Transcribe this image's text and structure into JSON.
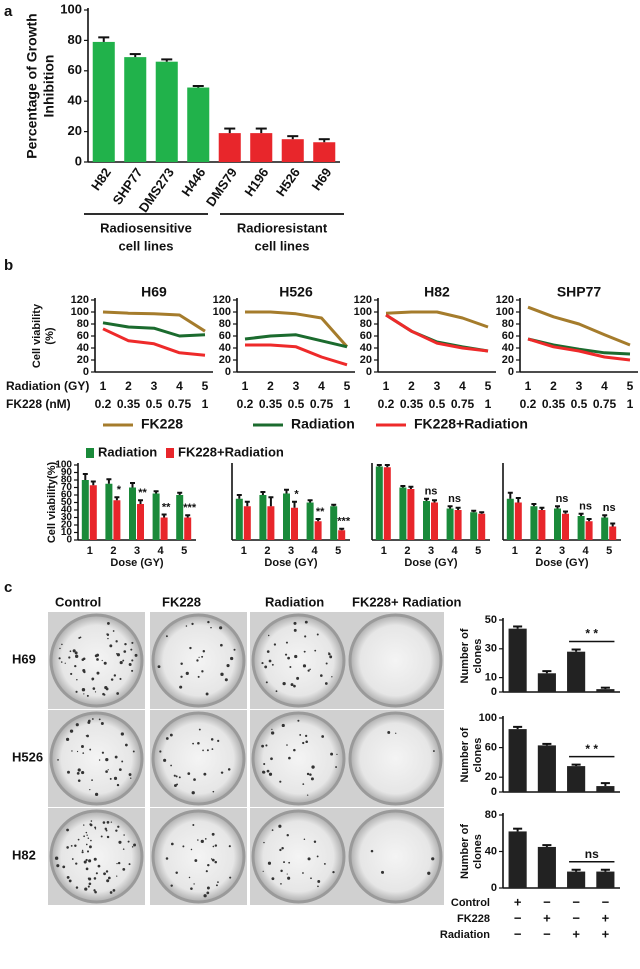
{
  "panels": [
    "a",
    "b",
    "c"
  ],
  "dose_rows": [
    "Radiation (GY)",
    "FK228 (nM)"
  ],
  "plates": {
    "columns": [
      "Control",
      "FK228",
      "Radiation",
      "FK228+ Radiation"
    ],
    "rows": [
      "H69",
      "H526",
      "H82"
    ]
  },
  "treatments": [
    {
      "name": "Control",
      "signs": [
        "+",
        "−",
        "−",
        "−"
      ]
    },
    {
      "name": "FK228",
      "signs": [
        "−",
        "+",
        "−",
        "+"
      ]
    },
    {
      "name": "Radiation",
      "signs": [
        "−",
        "−",
        "+",
        "+"
      ]
    }
  ],
  "chart_data": [
    {
      "type": "bar",
      "ylabel": [
        "Percentage of Growth",
        "Inhibition"
      ],
      "categories": [
        "H82",
        "SHP77",
        "DMS273",
        "H446",
        "DMS79",
        "H196",
        "H526",
        "H69"
      ],
      "values": [
        79,
        69,
        66,
        49,
        19,
        19,
        15,
        13
      ],
      "errors": [
        3,
        2,
        1.5,
        1,
        3,
        3,
        2,
        2
      ],
      "colors": [
        "#21b24b",
        "#21b24b",
        "#21b24b",
        "#21b24b",
        "#e8262b",
        "#e8262b",
        "#e8262b",
        "#e8262b"
      ],
      "group_labels": [
        [
          "Radiosensitive",
          "cell lines"
        ],
        [
          "Radioresistant",
          "cell lines"
        ]
      ],
      "ylim": [
        0,
        100
      ],
      "yticks": [
        0,
        20,
        40,
        60,
        80,
        100
      ]
    },
    {
      "type": "line",
      "title": "H69",
      "ylabel": [
        "Cell viability",
        "(%)"
      ],
      "categories": [
        "1",
        "2",
        "3",
        "4",
        "5"
      ],
      "categories2": [
        "0.2",
        "0.35",
        "0.5",
        "0.75",
        "1"
      ],
      "ylim": [
        0,
        120
      ],
      "yticks": [
        0,
        20,
        40,
        60,
        80,
        100,
        120
      ],
      "series": [
        {
          "name": "FK228",
          "color": "#a57c2c",
          "values": [
            100,
            98,
            97,
            95,
            68
          ]
        },
        {
          "name": "Radiation",
          "color": "#1b6b2e",
          "values": [
            82,
            75,
            73,
            60,
            62
          ]
        },
        {
          "name": "FK228+Radiation",
          "color": "#ee2a2a",
          "values": [
            72,
            52,
            47,
            32,
            28
          ]
        }
      ]
    },
    {
      "type": "line",
      "title": "H526",
      "categories": [
        "1",
        "2",
        "3",
        "4",
        "5"
      ],
      "categories2": [
        "0.2",
        "0.35",
        "0.5",
        "0.75",
        "1"
      ],
      "ylim": [
        0,
        120
      ],
      "yticks": [
        0,
        20,
        40,
        60,
        80,
        100,
        120
      ],
      "series": [
        {
          "color": "#a57c2c",
          "values": [
            100,
            100,
            97,
            90,
            42
          ]
        },
        {
          "color": "#1b6b2e",
          "values": [
            55,
            60,
            62,
            52,
            42
          ]
        },
        {
          "color": "#ee2a2a",
          "values": [
            45,
            45,
            42,
            25,
            12
          ]
        }
      ]
    },
    {
      "type": "line",
      "title": "H82",
      "categories": [
        "1",
        "2",
        "3",
        "4",
        "5"
      ],
      "categories2": [
        "0.2",
        "0.35",
        "0.5",
        "0.75",
        "1"
      ],
      "ylim": [
        0,
        120
      ],
      "yticks": [
        0,
        20,
        40,
        60,
        80,
        100,
        120
      ],
      "series": [
        {
          "color": "#a57c2c",
          "values": [
            98,
            100,
            100,
            90,
            75
          ]
        },
        {
          "color": "#1b6b2e",
          "values": [
            95,
            68,
            50,
            42,
            35
          ]
        },
        {
          "color": "#ee2a2a",
          "values": [
            95,
            68,
            48,
            40,
            35
          ]
        }
      ]
    },
    {
      "type": "line",
      "title": "SHP77",
      "categories": [
        "1",
        "2",
        "3",
        "4",
        "5"
      ],
      "categories2": [
        "0.2",
        "0.35",
        "0.5",
        "0.75",
        "1"
      ],
      "ylim": [
        0,
        120
      ],
      "yticks": [
        0,
        20,
        40,
        60,
        80,
        100,
        120
      ],
      "series": [
        {
          "color": "#a57c2c",
          "values": [
            108,
            92,
            80,
            62,
            45
          ]
        },
        {
          "color": "#1b6b2e",
          "values": [
            55,
            45,
            38,
            32,
            30
          ]
        },
        {
          "color": "#ee2a2a",
          "values": [
            55,
            42,
            35,
            25,
            20
          ]
        }
      ]
    },
    {
      "type": "grouped_bar",
      "ylabel": "Cell viability(%)",
      "xlabel": "Dose (GY)",
      "categories": [
        "1",
        "2",
        "3",
        "4",
        "5"
      ],
      "ylim": [
        0,
        100
      ],
      "yticks": [
        0,
        10,
        20,
        30,
        40,
        50,
        60,
        70,
        80,
        90,
        100
      ],
      "significance": [
        null,
        "*",
        "**",
        "**",
        "***"
      ],
      "series": [
        {
          "name": "Radiation",
          "color": "#1a8a3a",
          "values": [
            80,
            75,
            70,
            62,
            60
          ],
          "errors": [
            8,
            6,
            6,
            3,
            3
          ]
        },
        {
          "name": "FK228+Radiation",
          "color": "#e8262b",
          "values": [
            73,
            53,
            48,
            30,
            30
          ],
          "errors": [
            5,
            4,
            5,
            4,
            3
          ]
        }
      ]
    },
    {
      "type": "grouped_bar",
      "xlabel": "Dose (GY)",
      "categories": [
        "1",
        "2",
        "3",
        "4",
        "5"
      ],
      "ylim": [
        0,
        100
      ],
      "significance": [
        null,
        null,
        "*",
        "**",
        "***"
      ],
      "series": [
        {
          "color": "#1a8a3a",
          "values": [
            55,
            60,
            62,
            50,
            45
          ],
          "errors": [
            5,
            4,
            5,
            3,
            2
          ]
        },
        {
          "color": "#e8262b",
          "values": [
            45,
            45,
            43,
            25,
            13
          ],
          "errors": [
            6,
            12,
            8,
            3,
            2
          ]
        }
      ]
    },
    {
      "type": "grouped_bar",
      "xlabel": "Dose (GY)",
      "categories": [
        "1",
        "2",
        "3",
        "4",
        "5"
      ],
      "ylim": [
        0,
        100
      ],
      "significance": [
        null,
        null,
        "ns",
        "ns",
        null
      ],
      "series": [
        {
          "color": "#1a8a3a",
          "values": [
            98,
            70,
            52,
            42,
            37
          ],
          "errors": [
            2,
            2,
            3,
            3,
            2
          ]
        },
        {
          "color": "#e8262b",
          "values": [
            97,
            68,
            50,
            40,
            35
          ],
          "errors": [
            3,
            3,
            3,
            3,
            2
          ]
        }
      ]
    },
    {
      "type": "grouped_bar",
      "xlabel": "Dose (GY)",
      "categories": [
        "1",
        "2",
        "3",
        "4",
        "5"
      ],
      "ylim": [
        0,
        100
      ],
      "significance": [
        null,
        null,
        "ns",
        "ns",
        "ns"
      ],
      "series": [
        {
          "color": "#1a8a3a",
          "values": [
            55,
            45,
            42,
            32,
            30
          ],
          "errors": [
            8,
            3,
            3,
            3,
            3
          ]
        },
        {
          "color": "#e8262b",
          "values": [
            50,
            40,
            35,
            25,
            18
          ],
          "errors": [
            6,
            3,
            3,
            3,
            4
          ]
        }
      ]
    },
    {
      "type": "bar",
      "ylabel": [
        "Number of",
        "clones"
      ],
      "color": "#222222",
      "values": [
        44,
        13,
        28,
        2
      ],
      "errors": [
        1.5,
        1.5,
        1.5,
        1
      ],
      "ylim": [
        0,
        50
      ],
      "yticks": [
        0,
        10,
        30,
        50
      ],
      "significance": [
        null,
        null,
        null,
        "* *"
      ]
    },
    {
      "type": "bar",
      "ylabel": [
        "Number of",
        "clones"
      ],
      "color": "#222222",
      "values": [
        85,
        63,
        35,
        8
      ],
      "errors": [
        3,
        2,
        2,
        4
      ],
      "ylim": [
        0,
        100
      ],
      "yticks": [
        0,
        20,
        60,
        100
      ],
      "significance": [
        null,
        null,
        null,
        "* *"
      ]
    },
    {
      "type": "bar",
      "ylabel": [
        "Number of",
        "clones"
      ],
      "color": "#222222",
      "values": [
        62,
        45,
        18,
        18
      ],
      "errors": [
        3,
        2,
        2,
        2
      ],
      "ylim": [
        0,
        80
      ],
      "yticks": [
        0,
        40,
        80
      ],
      "significance": [
        null,
        null,
        null,
        "ns"
      ]
    }
  ]
}
